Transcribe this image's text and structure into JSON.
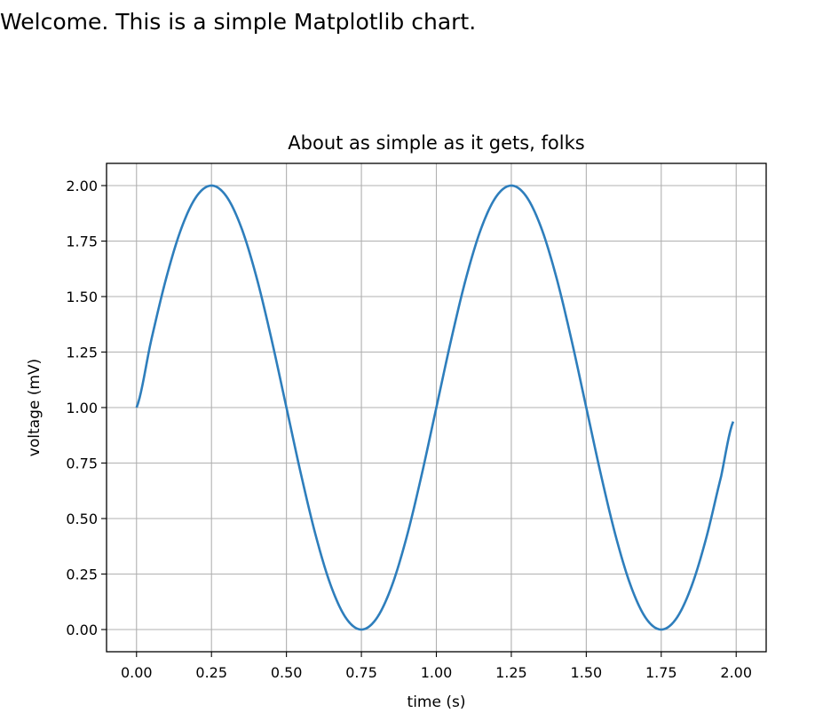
{
  "intro_text": "Welcome. This is a simple Matplotlib chart.",
  "chart_data": {
    "type": "line",
    "title": "About as simple as it gets, folks",
    "xlabel": "time (s)",
    "ylabel": "voltage (mV)",
    "xlim": [
      -0.1,
      2.1
    ],
    "ylim": [
      -0.1,
      2.1
    ],
    "xticks": [
      0.0,
      0.25,
      0.5,
      0.75,
      1.0,
      1.25,
      1.5,
      1.75,
      2.0
    ],
    "xtick_labels": [
      "0.00",
      "0.25",
      "0.50",
      "0.75",
      "1.00",
      "1.25",
      "1.50",
      "1.75",
      "2.00"
    ],
    "yticks": [
      0.0,
      0.25,
      0.5,
      0.75,
      1.0,
      1.25,
      1.5,
      1.75,
      2.0
    ],
    "ytick_labels": [
      "0.00",
      "0.25",
      "0.50",
      "0.75",
      "1.00",
      "1.25",
      "1.50",
      "1.75",
      "2.00"
    ],
    "grid": true,
    "series": [
      {
        "color": "#2e7ebc",
        "x": [
          0.0,
          0.05,
          0.1,
          0.15,
          0.2,
          0.25,
          0.3,
          0.35,
          0.4,
          0.45,
          0.5,
          0.55,
          0.6,
          0.65,
          0.7,
          0.75,
          0.8,
          0.85,
          0.9,
          0.95,
          1.0,
          1.05,
          1.1,
          1.15,
          1.2,
          1.25,
          1.3,
          1.35,
          1.4,
          1.45,
          1.5,
          1.55,
          1.6,
          1.65,
          1.7,
          1.75,
          1.8,
          1.85,
          1.9,
          1.95,
          1.99
        ],
        "y": [
          1.0,
          1.309,
          1.588,
          1.809,
          1.951,
          2.0,
          1.951,
          1.809,
          1.588,
          1.309,
          1.0,
          0.691,
          0.412,
          0.191,
          0.049,
          0.0,
          0.049,
          0.191,
          0.412,
          0.691,
          1.0,
          1.309,
          1.588,
          1.809,
          1.951,
          2.0,
          1.951,
          1.809,
          1.588,
          1.309,
          1.0,
          0.691,
          0.412,
          0.191,
          0.049,
          0.0,
          0.049,
          0.191,
          0.412,
          0.691,
          0.937
        ]
      }
    ]
  }
}
